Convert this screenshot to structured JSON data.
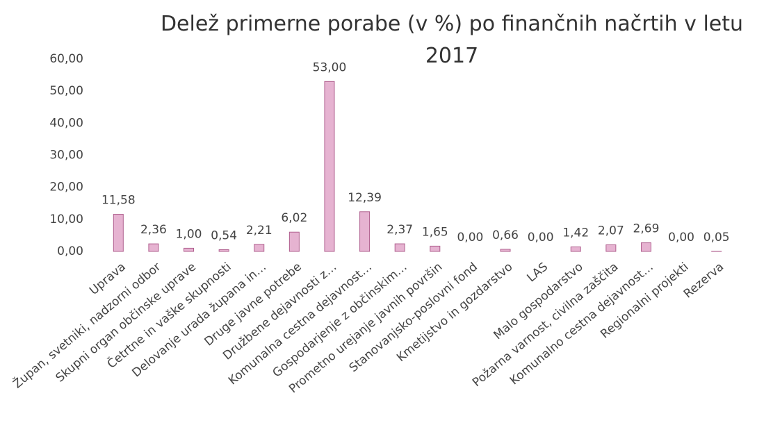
{
  "chart_data": {
    "type": "bar",
    "title": "Delež primerne porabe (v %) po finančnih načrtih v letu 2017",
    "categories": [
      "Uprava",
      "Župan, svetniki, nadzorni odbor",
      "Skupni organ občinske uprave",
      "Četrtne in vaške skupnosti",
      "Delovanje urada župana in…",
      "Druge javne potrebe",
      "Družbene dejavnosti z…",
      "Komunalna cestna dejavnost…",
      "Gospodarjenje z občinskim…",
      "Prometno urejanje javnih površin",
      "Stanovanjsko-poslovni fond",
      "Kmetijstvo in gozdarstvo",
      "LAS",
      "Malo gospodarstvo",
      "Požarna varnost, civilna zaščita",
      "Komunalno cestna dejavnost…",
      "Regionalni projekti",
      "Rezerva"
    ],
    "values": [
      11.58,
      2.36,
      1.0,
      0.54,
      2.21,
      6.02,
      53.0,
      12.39,
      2.37,
      1.65,
      0.0,
      0.66,
      0.0,
      1.42,
      2.07,
      2.69,
      0.0,
      0.05
    ],
    "value_labels": [
      "11,58",
      "2,36",
      "1,00",
      "0,54",
      "2,21",
      "6,02",
      "53,00",
      "12,39",
      "2,37",
      "1,65",
      "0,00",
      "0,66",
      "0,00",
      "1,42",
      "2,07",
      "2,69",
      "0,00",
      "0,05"
    ],
    "color": "#e6b3d1",
    "ylim": [
      0,
      60
    ],
    "yticks": [
      {
        "value": 0,
        "label": "0,00"
      },
      {
        "value": 10,
        "label": "10,00"
      },
      {
        "value": 20,
        "label": "20,00"
      },
      {
        "value": 30,
        "label": "30,00"
      },
      {
        "value": 40,
        "label": "40,00"
      },
      {
        "value": 50,
        "label": "50,00"
      },
      {
        "value": 60,
        "label": "60,00"
      }
    ],
    "grid": false
  }
}
